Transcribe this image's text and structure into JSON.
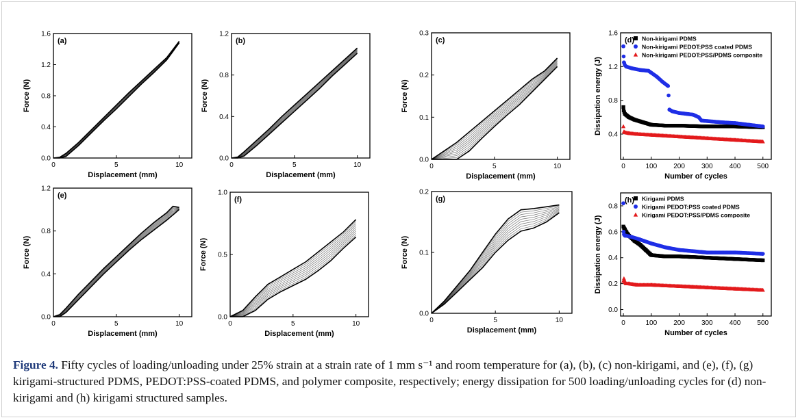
{
  "caption": {
    "label": "Figure 4.",
    "text": " Fifty cycles of loading/unloading under 25% strain at a strain rate of 1 mm s⁻¹ and room temperature for (a), (b), (c) non-kirigami, and (e), (f), (g) kirigami-structured PDMS, PEDOT:PSS-coated PDMS, and polymer composite, respectively; energy dissipation for 500 loading/unloading cycles for (d) non-kirigami and (h) kirigami structured samples."
  },
  "colors": {
    "series_black": "#000000",
    "series_blue": "#1f2ee6",
    "series_red": "#e31a1c"
  },
  "chart_data": [
    {
      "id": "a",
      "panel_label": "(a)",
      "type": "line",
      "xlabel": "Displacement (mm)",
      "ylabel": "Force (N)",
      "xlim": [
        0,
        11
      ],
      "ylim": [
        0,
        1.6
      ],
      "xticks": [
        "0",
        "5",
        "10"
      ],
      "yticks": [
        "0.0",
        "0.4",
        "0.8",
        "1.2",
        "1.6"
      ],
      "series": [
        {
          "x": [
            0,
            0.5,
            1,
            2,
            3,
            4,
            5,
            6,
            7,
            8,
            9,
            10
          ],
          "loading": [
            0,
            0.01,
            0.06,
            0.2,
            0.36,
            0.52,
            0.68,
            0.84,
            0.99,
            1.14,
            1.29,
            1.5
          ],
          "unloading": [
            0,
            0,
            0.02,
            0.16,
            0.32,
            0.48,
            0.63,
            0.79,
            0.95,
            1.1,
            1.26,
            1.48
          ]
        }
      ]
    },
    {
      "id": "b",
      "panel_label": "(b)",
      "type": "line",
      "xlabel": "Displacement (mm)",
      "ylabel": "Force (N)",
      "xlim": [
        0,
        11
      ],
      "ylim": [
        0,
        1.2
      ],
      "xticks": [
        "0",
        "5",
        "10"
      ],
      "yticks": [
        "0.0",
        "0.4",
        "0.8",
        "1.2"
      ],
      "series": [
        {
          "x": [
            0,
            0.5,
            1,
            2,
            3,
            4,
            5,
            6,
            7,
            8,
            9,
            10
          ],
          "loading": [
            0,
            0.01,
            0.06,
            0.17,
            0.28,
            0.4,
            0.51,
            0.62,
            0.73,
            0.84,
            0.95,
            1.06
          ],
          "unloading": [
            0,
            0,
            0.02,
            0.12,
            0.23,
            0.34,
            0.45,
            0.56,
            0.67,
            0.79,
            0.9,
            1.01
          ]
        }
      ]
    },
    {
      "id": "c",
      "panel_label": "(c)",
      "type": "line",
      "xlabel": "Displacement (mm)",
      "ylabel": "Force (N)",
      "xlim": [
        0,
        11
      ],
      "ylim": [
        0,
        0.3
      ],
      "xticks": [
        "0",
        "5",
        "10"
      ],
      "yticks": [
        "0.0",
        "0.1",
        "0.2",
        "0.3"
      ],
      "series": [
        {
          "x": [
            0,
            1,
            2,
            3,
            4,
            5,
            6,
            7,
            8,
            9,
            10
          ],
          "loading": [
            0,
            0.02,
            0.04,
            0.065,
            0.09,
            0.115,
            0.14,
            0.165,
            0.19,
            0.21,
            0.24
          ],
          "unloading": [
            0,
            0,
            0,
            0.02,
            0.05,
            0.078,
            0.105,
            0.13,
            0.16,
            0.19,
            0.22
          ]
        }
      ]
    },
    {
      "id": "d",
      "panel_label": "(d)",
      "type": "scatter",
      "xlabel": "Number of cycles",
      "ylabel": "Dissipation energy (J)",
      "xlim": [
        -10,
        530
      ],
      "ylim": [
        0.1,
        1.6
      ],
      "xticks": [
        "0",
        "100",
        "200",
        "300",
        "400",
        "500"
      ],
      "yticks": [
        "0.4",
        "0.8",
        "1.2",
        "1.6"
      ],
      "series": [
        {
          "name": "Non-kirigami PDMS",
          "marker": "square",
          "color": "#000000",
          "x": [
            0,
            1,
            5,
            20,
            40,
            60,
            80,
            100,
            150,
            200,
            300,
            400,
            500
          ],
          "y": [
            0.72,
            0.68,
            0.64,
            0.6,
            0.57,
            0.55,
            0.53,
            0.51,
            0.5,
            0.5,
            0.49,
            0.49,
            0.48
          ]
        },
        {
          "name": "Non-kirigami PEDOT:PSS coated PDMS",
          "marker": "circle",
          "color": "#1f2ee6",
          "x": [
            0,
            1,
            2,
            5,
            10,
            30,
            60,
            90,
            120,
            140,
            160,
            165,
            175,
            200,
            250,
            270,
            280,
            350,
            400,
            450,
            500
          ],
          "y": [
            1.44,
            1.32,
            1.25,
            1.22,
            1.2,
            1.18,
            1.16,
            1.15,
            1.08,
            1.02,
            0.97,
            0.69,
            0.67,
            0.65,
            0.63,
            0.6,
            0.56,
            0.54,
            0.53,
            0.51,
            0.49
          ]
        },
        {
          "name": "Non-kirigami PEDOT:PSS/PDMS composite",
          "marker": "triangle",
          "color": "#e31a1c",
          "x": [
            0,
            2,
            5,
            20,
            50,
            100,
            200,
            300,
            400,
            500
          ],
          "y": [
            0.49,
            0.43,
            0.42,
            0.41,
            0.4,
            0.39,
            0.37,
            0.35,
            0.33,
            0.31
          ]
        }
      ]
    },
    {
      "id": "e",
      "panel_label": "(e)",
      "type": "line",
      "xlabel": "Displacement (mm)",
      "ylabel": "Force (N)",
      "xlim": [
        0,
        11
      ],
      "ylim": [
        0,
        1.2
      ],
      "xticks": [
        "0",
        "5",
        "10"
      ],
      "yticks": [
        "0.0",
        "0.4",
        "0.8",
        "1.2"
      ],
      "series": [
        {
          "x": [
            0,
            0.5,
            1,
            2,
            3,
            4,
            5,
            6,
            7,
            8,
            9,
            9.5,
            10
          ],
          "loading": [
            0,
            0.02,
            0.08,
            0.21,
            0.33,
            0.45,
            0.56,
            0.67,
            0.78,
            0.88,
            0.97,
            1.03,
            1.02
          ],
          "unloading": [
            0,
            0,
            0.04,
            0.16,
            0.28,
            0.4,
            0.51,
            0.62,
            0.72,
            0.81,
            0.9,
            0.95,
            1.0
          ]
        }
      ]
    },
    {
      "id": "f",
      "panel_label": "(f)",
      "type": "line",
      "xlabel": "Displacement (mm)",
      "ylabel": "Force (N)",
      "xlim": [
        0,
        11
      ],
      "ylim": [
        0,
        1.0
      ],
      "xticks": [
        "0",
        "5",
        "10"
      ],
      "yticks": [
        "0.0",
        "0.5",
        "1.0"
      ],
      "series": [
        {
          "x": [
            0,
            1,
            2,
            3,
            4,
            5,
            6,
            7,
            8,
            9,
            10
          ],
          "loading": [
            0,
            0.05,
            0.16,
            0.26,
            0.32,
            0.38,
            0.44,
            0.52,
            0.6,
            0.68,
            0.78
          ],
          "unloading": [
            0,
            0,
            0.05,
            0.14,
            0.2,
            0.25,
            0.3,
            0.37,
            0.45,
            0.55,
            0.64
          ]
        }
      ]
    },
    {
      "id": "g",
      "panel_label": "(g)",
      "type": "line",
      "xlabel": "Displacement (mm)",
      "ylabel": "Force (N)",
      "xlim": [
        0,
        11
      ],
      "ylim": [
        0,
        0.2
      ],
      "xticks": [
        "0",
        "5",
        "10"
      ],
      "yticks": [
        "0.0",
        "0.1",
        "0.2"
      ],
      "series": [
        {
          "x": [
            0,
            1,
            2,
            3,
            4,
            5,
            6,
            7,
            8,
            9,
            10
          ],
          "loading": [
            0,
            0.02,
            0.045,
            0.07,
            0.1,
            0.13,
            0.155,
            0.17,
            0.172,
            0.175,
            0.178
          ],
          "unloading": [
            0,
            0.015,
            0.035,
            0.055,
            0.075,
            0.1,
            0.12,
            0.135,
            0.14,
            0.15,
            0.165
          ]
        }
      ]
    },
    {
      "id": "h",
      "panel_label": "(h)",
      "type": "scatter",
      "xlabel": "Number of cycles",
      "ylabel": "Dissipation energy (J)",
      "xlim": [
        -10,
        530
      ],
      "ylim": [
        -0.05,
        0.9
      ],
      "xticks": [
        "0",
        "100",
        "200",
        "300",
        "400",
        "500"
      ],
      "yticks": [
        "0.0",
        "0.2",
        "0.4",
        "0.6",
        "0.8"
      ],
      "series": [
        {
          "name": "Kirigami PDMS",
          "marker": "square",
          "color": "#000000",
          "x": [
            0,
            2,
            5,
            10,
            20,
            40,
            60,
            80,
            95,
            100,
            150,
            200,
            300,
            400,
            500
          ],
          "y": [
            0.64,
            0.63,
            0.62,
            0.6,
            0.57,
            0.53,
            0.5,
            0.46,
            0.43,
            0.42,
            0.41,
            0.41,
            0.4,
            0.39,
            0.38
          ]
        },
        {
          "name": "Kirigami PEDOT:PSS coated PDMS",
          "marker": "circle",
          "color": "#1f2ee6",
          "x": [
            0,
            1,
            2,
            5,
            10,
            30,
            60,
            100,
            150,
            200,
            250,
            300,
            400,
            500
          ],
          "y": [
            0.82,
            0.6,
            0.58,
            0.57,
            0.57,
            0.56,
            0.54,
            0.51,
            0.48,
            0.46,
            0.45,
            0.44,
            0.44,
            0.43
          ]
        },
        {
          "name": "Kirigami PEDOT:PSS/PDMS composite",
          "marker": "triangle",
          "color": "#e31a1c",
          "x": [
            0,
            2,
            5,
            10,
            20,
            50,
            100,
            200,
            300,
            400,
            500
          ],
          "y": [
            0.22,
            0.24,
            0.21,
            0.2,
            0.2,
            0.19,
            0.19,
            0.18,
            0.17,
            0.16,
            0.15
          ]
        }
      ]
    }
  ]
}
